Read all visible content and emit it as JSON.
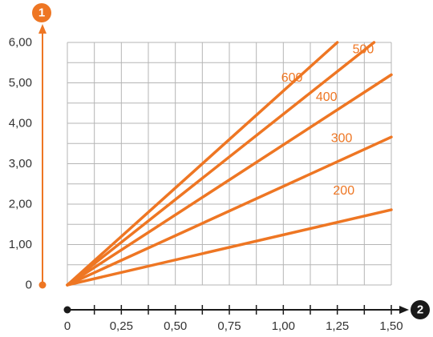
{
  "chart_data": {
    "type": "line",
    "x": [
      0,
      1.5
    ],
    "xlim": [
      0,
      1.5
    ],
    "ylim": [
      0,
      6
    ],
    "grid": true,
    "x_ticks": [
      "0",
      "0,25",
      "0,50",
      "0,75",
      "1,00",
      "1,25",
      "1,50"
    ],
    "y_ticks": [
      "0",
      "1,00",
      "2,00",
      "3,00",
      "4,00",
      "5,00",
      "6,00"
    ],
    "y_axis_marker": "1",
    "x_axis_marker": "2",
    "series": [
      {
        "name": "200",
        "points": [
          [
            0,
            0
          ],
          [
            1.5,
            1.86
          ]
        ]
      },
      {
        "name": "300",
        "points": [
          [
            0,
            0
          ],
          [
            1.5,
            3.66
          ]
        ]
      },
      {
        "name": "400",
        "points": [
          [
            0,
            0
          ],
          [
            1.5,
            5.2
          ]
        ]
      },
      {
        "name": "500",
        "points": [
          [
            0,
            0
          ],
          [
            1.42,
            6.0
          ]
        ]
      },
      {
        "name": "600",
        "points": [
          [
            0,
            0
          ],
          [
            1.25,
            6.0
          ]
        ]
      }
    ]
  },
  "colors": {
    "series": "#ee7623",
    "grid": "#b5b5b5",
    "axis_dark": "#1a1a1a",
    "axis_orange": "#ee7623"
  }
}
